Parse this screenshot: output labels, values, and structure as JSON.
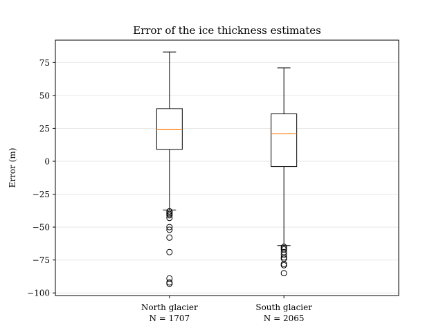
{
  "chart_data": {
    "type": "box",
    "title": "Error of the ice thickness estimates",
    "xlabel": "",
    "ylabel": "Error (m)",
    "ylim": [
      -102,
      92
    ],
    "yticks": [
      75,
      50,
      25,
      0,
      -25,
      -50,
      -75,
      -100
    ],
    "ytick_labels": [
      "75",
      "50",
      "25",
      "0",
      "−25",
      "−50",
      "−75",
      "−100"
    ],
    "grid": "horizontal",
    "median_color": "#ff7f0e",
    "box_color": "#000000",
    "grid_color": "#e6e6e6",
    "categories": [
      {
        "line1": "North glacier",
        "line2": "N = 1707"
      },
      {
        "line1": "South glacier",
        "line2": "N = 2065"
      }
    ],
    "series": [
      {
        "whisker_low": -37,
        "q1": 9,
        "median": 24,
        "q3": 40,
        "whisker_high": 83,
        "outliers": [
          -38,
          -39,
          -40,
          -41,
          -43,
          -50,
          -52,
          -58,
          -69,
          -89,
          -92,
          -93
        ]
      },
      {
        "whisker_low": -64,
        "q1": -4,
        "median": 21,
        "q3": 36,
        "whisker_high": 71,
        "outliers": [
          -65,
          -66,
          -67,
          -69,
          -71,
          -73,
          -74,
          -78,
          -79,
          -85
        ]
      }
    ]
  }
}
